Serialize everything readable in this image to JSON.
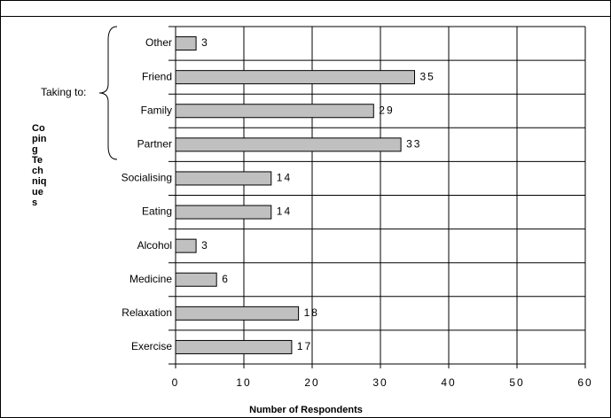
{
  "chart_data": {
    "type": "bar",
    "orientation": "horizontal",
    "categories": [
      "Other",
      "Friend",
      "Family",
      "Partner",
      "Socialising",
      "Eating",
      "Alcohol",
      "Medicine",
      "Relaxation",
      "Exercise"
    ],
    "values": [
      3,
      35,
      29,
      33,
      14,
      14,
      3,
      6,
      18,
      17
    ],
    "color": "#c0c0c0",
    "xlim": [
      0,
      60
    ],
    "xticks": [
      0,
      10,
      20,
      30,
      40,
      50,
      60
    ],
    "x_label": "Number of Respondents",
    "y_label_lines": [
      "Co",
      "pin",
      "g",
      "Te",
      "ch",
      "niq",
      "ue",
      "s"
    ],
    "annotation": "Taking to:",
    "grid": true
  }
}
